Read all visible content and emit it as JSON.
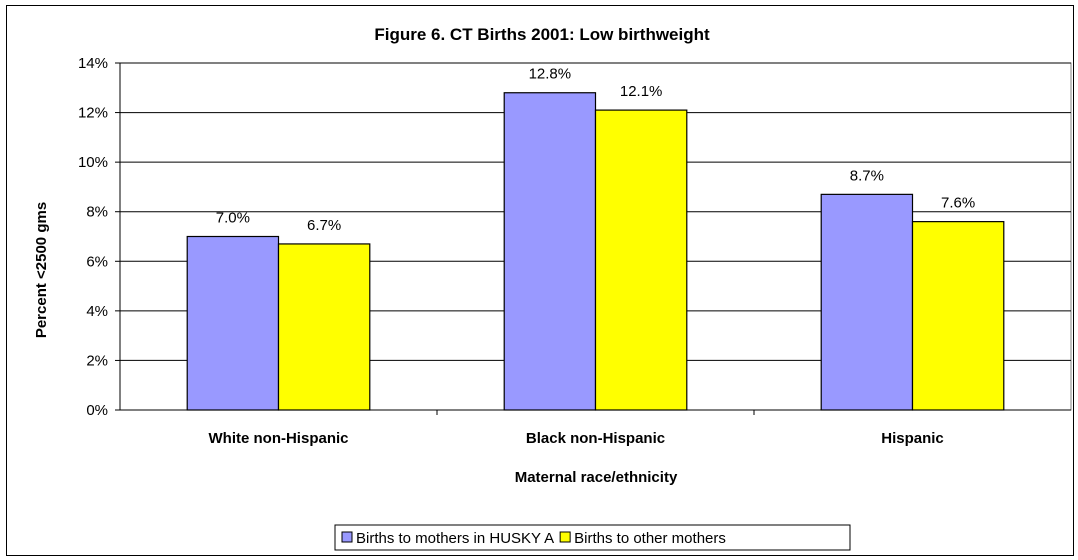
{
  "chart_data": {
    "type": "bar",
    "title": "Figure 6.  CT Births 2001: Low birthweight",
    "xlabel": "Maternal race/ethnicity",
    "ylabel": "Percent <2500 gms",
    "categories": [
      "White non-Hispanic",
      "Black non-Hispanic",
      "Hispanic"
    ],
    "series": [
      {
        "name": "Births to mothers in HUSKY A",
        "values": [
          7.0,
          12.8,
          8.7
        ],
        "labels": [
          "7.0%",
          "12.8%",
          "8.7%"
        ],
        "color": "#9999ff"
      },
      {
        "name": "Births to other mothers",
        "values": [
          6.7,
          12.1,
          7.6
        ],
        "labels": [
          "6.7%",
          "12.1%",
          "7.6%"
        ],
        "color": "#ffff00"
      }
    ],
    "ylim": [
      0,
      14
    ],
    "yticks": [
      "0%",
      "2%",
      "4%",
      "6%",
      "8%",
      "10%",
      "12%",
      "14%"
    ],
    "grid": true,
    "legend_position": "bottom"
  }
}
